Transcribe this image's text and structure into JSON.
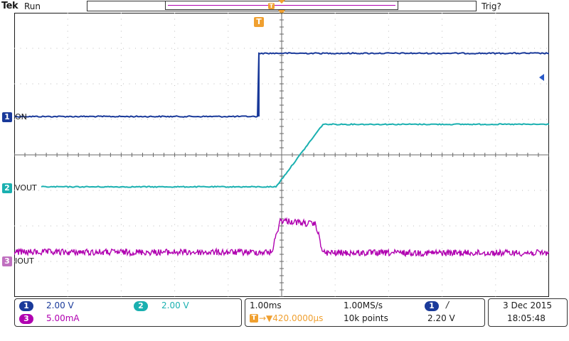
{
  "header": {
    "brand": "Tek",
    "run_state": "Run",
    "trigger_status": "Trig?"
  },
  "channels": [
    {
      "num": "1",
      "label": "ON",
      "color": "#1a3a9a",
      "scale": "2.00 V"
    },
    {
      "num": "2",
      "label": "VOUT",
      "color": "#1ab0b0",
      "scale": "2.00 V"
    },
    {
      "num": "3",
      "label": "IOUT",
      "color": "#b000b0",
      "scale": "5.00mA"
    }
  ],
  "markers": {
    "trigger": "T"
  },
  "timebase": {
    "scale": "1.00ms",
    "sample_rate": "1.00MS/s",
    "position": "→▼420.0000µs",
    "record": "10k points"
  },
  "trigger": {
    "source": "1",
    "slope": "/",
    "level": "2.20 V"
  },
  "datetime": {
    "date": "3 Dec  2015",
    "time": "18:05:48"
  }
}
